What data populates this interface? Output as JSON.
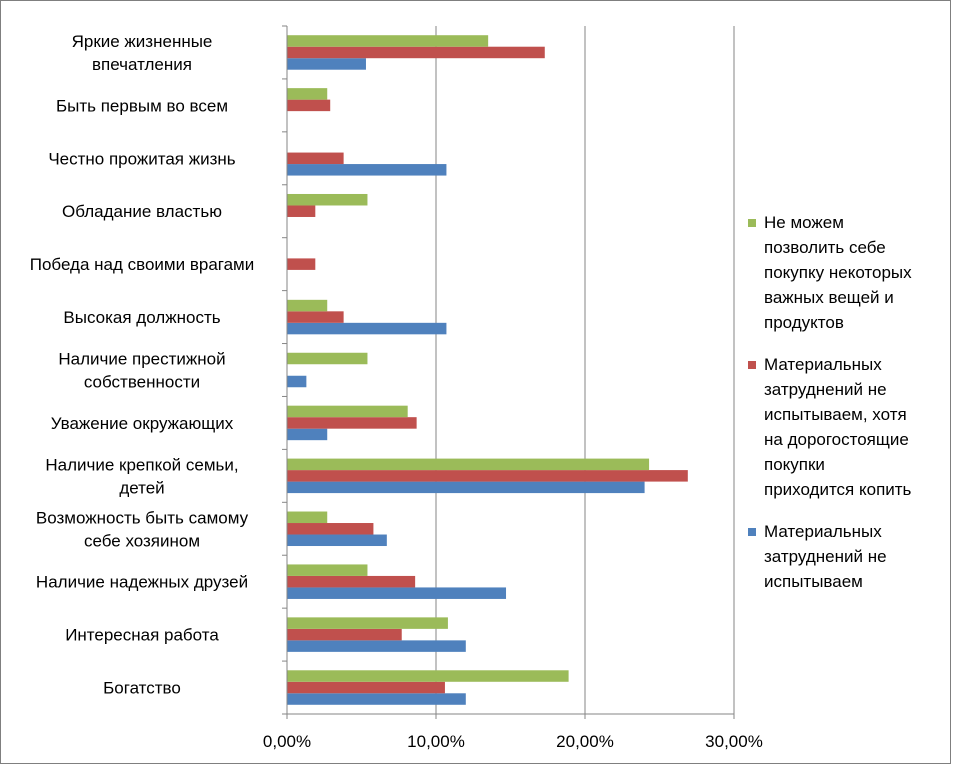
{
  "chart_data": {
    "type": "bar",
    "orientation": "horizontal",
    "categories": [
      "Богатство",
      "Интересная работа",
      "Наличие надежных друзей",
      "Возможность быть самому себе хозяином",
      "Наличие крепкой семьи, детей",
      "Уважение окружающих",
      "Наличие престижной собственности",
      "Высокая должность",
      "Победа над своими врагами",
      "Обладание властью",
      "Честно прожитая жизнь",
      "Быть первым во всем",
      "Яркие жизненные впечатления"
    ],
    "category_label_lines": [
      [
        "Богатство"
      ],
      [
        "Интересная работа"
      ],
      [
        "Наличие надежных друзей"
      ],
      [
        "Возможность быть самому",
        "себе хозяином"
      ],
      [
        "Наличие крепкой семьи,",
        "детей"
      ],
      [
        "Уважение окружающих"
      ],
      [
        "Наличие престижной",
        "собственности"
      ],
      [
        "Высокая должность"
      ],
      [
        "Победа над своими врагами"
      ],
      [
        "Обладание властью"
      ],
      [
        "Честно прожитая жизнь"
      ],
      [
        "Быть первым во всем"
      ],
      [
        "Яркие жизненные",
        "впечатления"
      ]
    ],
    "series": [
      {
        "name": "Материальных затруднений не испытываем",
        "legend_lines": [
          "Материальных",
          "затруднений не",
          "испытываем"
        ],
        "color": "#4f81bd",
        "values": [
          12.0,
          12.0,
          14.7,
          6.7,
          24.0,
          2.7,
          1.3,
          10.7,
          0,
          0,
          10.7,
          0,
          5.3
        ]
      },
      {
        "name": "Материальных затруднений не испытываем, хотя на дорогостоящие покупки приходится копить",
        "legend_lines": [
          "Материальных",
          "затруднений не",
          "испытываем, хотя",
          "на дорогостоящие",
          "покупки",
          "приходится копить"
        ],
        "color": "#c0504d",
        "values": [
          10.6,
          7.7,
          8.6,
          5.8,
          26.9,
          8.7,
          0,
          3.8,
          1.9,
          1.9,
          3.8,
          2.9,
          17.3
        ]
      },
      {
        "name": "Не можем позволить себе покупку некоторых важных вещей и продуктов",
        "legend_lines": [
          "Не можем",
          "позволить себе",
          "покупку некоторых",
          "важных вещей и",
          "продуктов"
        ],
        "color": "#9bbb59",
        "values": [
          18.9,
          10.8,
          5.4,
          2.7,
          24.3,
          8.1,
          5.4,
          2.7,
          0,
          5.4,
          0,
          2.7,
          13.5
        ]
      }
    ],
    "legend_order": [
      2,
      1,
      0
    ],
    "x_ticks": [
      0,
      10,
      20,
      30
    ],
    "x_tick_labels": [
      "0,00%",
      "10,00%",
      "20,00%",
      "30,00%"
    ],
    "xlim": [
      0,
      30
    ],
    "grid": "vertical",
    "legend_position": "right"
  }
}
